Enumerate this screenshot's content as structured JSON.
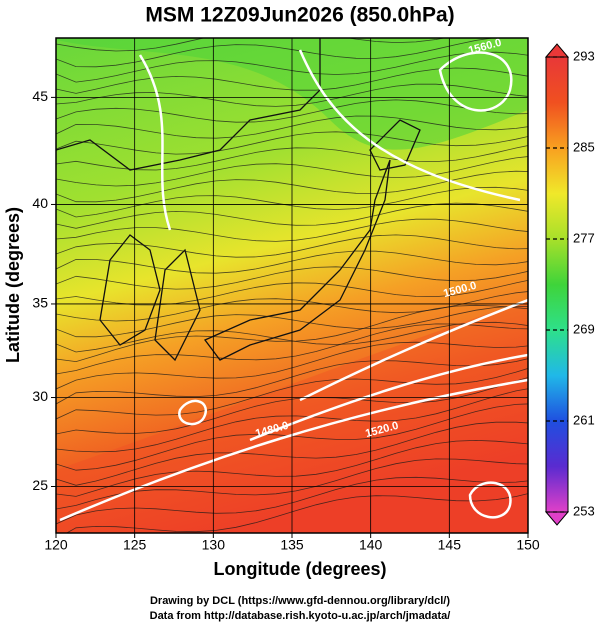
{
  "title": "MSM 12Z09Jun2026 (850.0hPa)",
  "x_label": "Longitude (degrees)",
  "y_label": "Latitude  (degrees)",
  "projection": "mercator",
  "xlim": [
    120,
    150
  ],
  "ylim": [
    22.3,
    47.6
  ],
  "xticks": [
    120,
    125,
    130,
    135,
    140,
    145,
    150
  ],
  "yticks": [
    25,
    30,
    35,
    40,
    45
  ],
  "grid": true,
  "colorbar": {
    "lim": [
      253,
      293
    ],
    "ticks": [
      253,
      261,
      269,
      277,
      285,
      293
    ],
    "colors": [
      "#e040c8",
      "#5a2bd0",
      "#1f4fe0",
      "#20b8e8",
      "#2ee08a",
      "#3fd43a",
      "#a8e02a",
      "#f0e82a",
      "#f8a020",
      "#f05020",
      "#e83838"
    ]
  },
  "contour_labels": [
    "1560.0",
    "1520.0",
    "1480.0",
    "1500.0"
  ],
  "footer": [
    "Drawing by DCL (https://www.gfd-dennou.org/library/dcl/)",
    "Data from http://database.rish.kyoto-u.ac.jp/arch/jmadata/"
  ]
}
